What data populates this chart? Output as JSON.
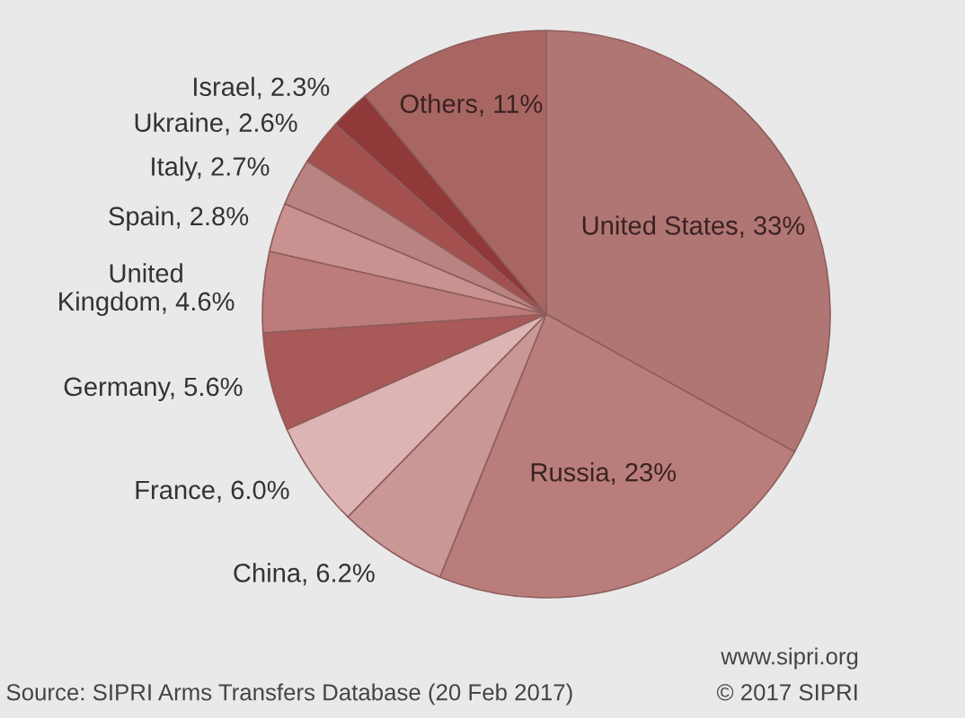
{
  "chart_data": {
    "type": "pie",
    "categories": [
      "United States",
      "Russia",
      "China",
      "France",
      "Germany",
      "United\nKingdom",
      "Spain",
      "Italy",
      "Ukraine",
      "Israel",
      "Others"
    ],
    "values": [
      33,
      23,
      6.2,
      6.0,
      5.6,
      4.6,
      2.8,
      2.7,
      2.6,
      2.3,
      11
    ],
    "value_labels": [
      "33%",
      "23%",
      "6.2%",
      "6.0%",
      "5.6%",
      "4.6%",
      "2.8%",
      "2.7%",
      "2.6%",
      "2.3%",
      "11%"
    ],
    "colors": [
      "#b07674",
      "#b97e7c",
      "#c99896",
      "#dcb4b3",
      "#a95957",
      "#bc7c7a",
      "#c99290",
      "#b98381",
      "#a4504e",
      "#8f3a38",
      "#a86663"
    ],
    "annotations": [
      "Source: SIPRI Arms Transfers Database (20 Feb 2017)",
      "www.sipri.org",
      "© 2017 SIPRI"
    ]
  }
}
